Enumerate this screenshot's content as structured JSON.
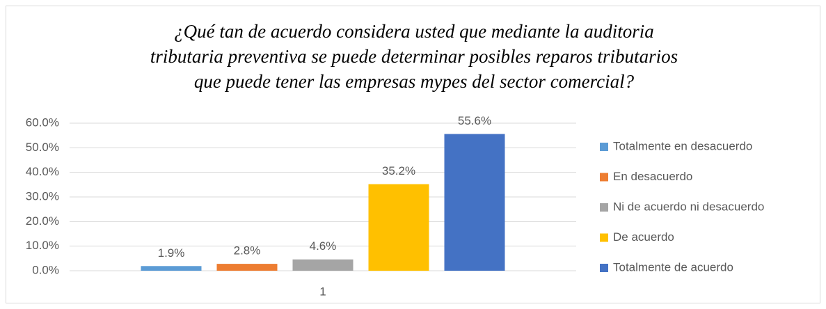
{
  "chart_data": {
    "type": "bar",
    "title": [
      "¿Qué tan de acuerdo considera usted que mediante la auditoria",
      "tributaria preventiva se puede determinar posibles reparos tributarios",
      "que puede tener las empresas mypes del sector comercial?"
    ],
    "categories": [
      "1"
    ],
    "series": [
      {
        "name": "Totalmente en desacuerdo",
        "color": "#5b9bd5",
        "values": [
          1.9
        ],
        "value_labels": [
          "1.9%"
        ]
      },
      {
        "name": "En desacuerdo",
        "color": "#ed7d31",
        "values": [
          2.8
        ],
        "value_labels": [
          "2.8%"
        ]
      },
      {
        "name": "Ni de acuerdo ni desacuerdo",
        "color": "#a5a5a5",
        "values": [
          4.6
        ],
        "value_labels": [
          "4.6%"
        ]
      },
      {
        "name": "De acuerdo",
        "color": "#ffc000",
        "values": [
          35.2
        ],
        "value_labels": [
          "35.2%"
        ]
      },
      {
        "name": "Totalmente de acuerdo",
        "color": "#4472c4",
        "values": [
          55.6
        ],
        "value_labels": [
          "55.6%"
        ]
      }
    ],
    "ylim": [
      0,
      60
    ],
    "yticks": [
      {
        "value": 0,
        "label": "0.0%"
      },
      {
        "value": 10,
        "label": "10.0%"
      },
      {
        "value": 20,
        "label": "20.0%"
      },
      {
        "value": 30,
        "label": "30.0%"
      },
      {
        "value": 40,
        "label": "40.0%"
      },
      {
        "value": 50,
        "label": "50.0%"
      },
      {
        "value": 60,
        "label": "60.0%"
      }
    ],
    "grid": true,
    "legend": "right"
  }
}
